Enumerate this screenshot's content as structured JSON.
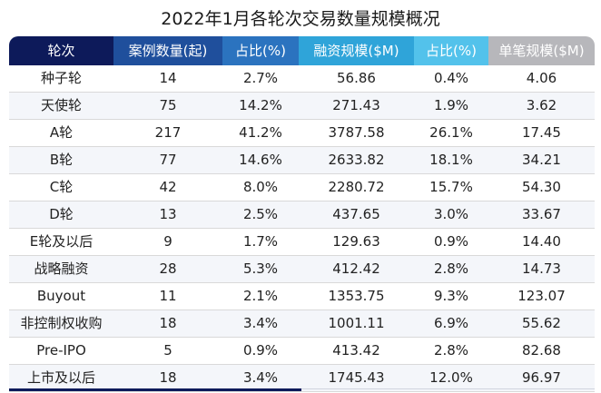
{
  "title": "2022年1月各轮次交易数量规模概况",
  "colors": {
    "header": [
      "#0d1a5a",
      "#1f4f9c",
      "#2b73bf",
      "#2fa4d9",
      "#53c2eb",
      "#b7b7bb"
    ]
  },
  "table": {
    "headers": [
      "轮次",
      "案例数量(起)",
      "占比(%)",
      "融资规模($M)",
      "占比(%)",
      "单笔规模($M)"
    ],
    "rows": [
      [
        "种子轮",
        "14",
        "2.7%",
        "56.86",
        "0.4%",
        "4.06"
      ],
      [
        "天使轮",
        "75",
        "14.2%",
        "271.43",
        "1.9%",
        "3.62"
      ],
      [
        "A轮",
        "217",
        "41.2%",
        "3787.58",
        "26.1%",
        "17.45"
      ],
      [
        "B轮",
        "77",
        "14.6%",
        "2633.82",
        "18.1%",
        "34.21"
      ],
      [
        "C轮",
        "42",
        "8.0%",
        "2280.72",
        "15.7%",
        "54.30"
      ],
      [
        "D轮",
        "13",
        "2.5%",
        "437.65",
        "3.0%",
        "33.67"
      ],
      [
        "E轮及以后",
        "9",
        "1.7%",
        "129.63",
        "0.9%",
        "14.40"
      ],
      [
        "战略融资",
        "28",
        "5.3%",
        "412.42",
        "2.8%",
        "14.73"
      ],
      [
        "Buyout",
        "11",
        "2.1%",
        "1353.75",
        "9.3%",
        "123.07"
      ],
      [
        "非控制权收购",
        "18",
        "3.4%",
        "1001.11",
        "6.9%",
        "55.62"
      ],
      [
        "Pre-IPO",
        "5",
        "0.9%",
        "413.42",
        "2.8%",
        "82.68"
      ],
      [
        "上市及以后",
        "18",
        "3.4%",
        "1745.43",
        "12.0%",
        "96.97"
      ]
    ]
  }
}
